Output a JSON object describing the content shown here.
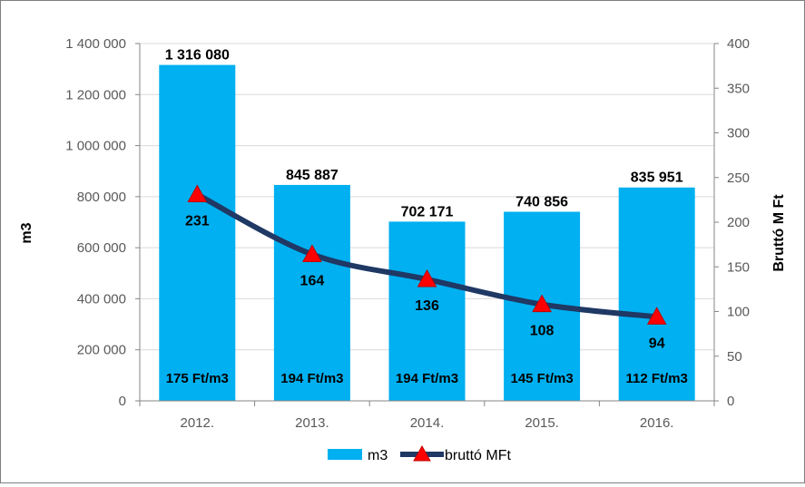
{
  "chart_data": {
    "type": "bar",
    "categories": [
      "2012.",
      "2013.",
      "2014.",
      "2015.",
      "2016."
    ],
    "series": [
      {
        "name": "m3",
        "type": "bar",
        "axis": "left",
        "color": "#00b0f0",
        "values": [
          1316080,
          845887,
          702171,
          740856,
          835951
        ],
        "value_labels": [
          "1 316 080",
          "845 887",
          "702 171",
          "740 856",
          "835 951"
        ]
      },
      {
        "name": "bruttó MFt",
        "type": "line",
        "axis": "right",
        "color": "#1f3864",
        "marker_color": "#ff0000",
        "marker": "triangle",
        "values": [
          231,
          164,
          136,
          108,
          94
        ],
        "value_labels": [
          "231",
          "164",
          "136",
          "108",
          "94"
        ]
      }
    ],
    "bar_inner_labels": [
      "175 Ft/m3",
      "194 Ft/m3",
      "194 Ft/m3",
      "145 Ft/m3",
      "112 Ft/m3"
    ],
    "ylabel": "m3",
    "y2label": "Bruttó M Ft",
    "ylim": [
      0,
      1400000
    ],
    "y2lim": [
      0,
      400
    ],
    "yticks": [
      "0",
      "200 000",
      "400 000",
      "600 000",
      "800 000",
      "1 000 000",
      "1 200 000",
      "1 400 000"
    ],
    "y2ticks": [
      "0",
      "50",
      "100",
      "150",
      "200",
      "250",
      "300",
      "350",
      "400"
    ],
    "grid": true,
    "legend": "bottom"
  }
}
